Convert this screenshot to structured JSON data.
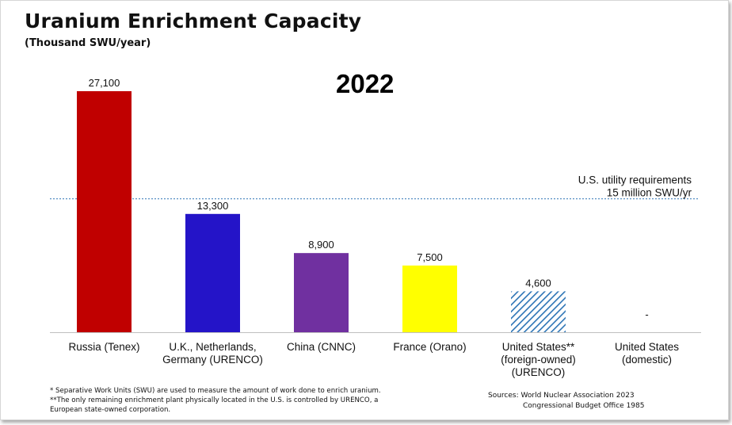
{
  "chart_data": {
    "type": "bar",
    "title": "Uranium Enrichment Capacity",
    "subtitle": "(Thousand SWU/year)",
    "year_label": "2022",
    "categories": [
      [
        "Russia (Tenex)"
      ],
      [
        "U.K., Netherlands,",
        "Germany (URENCO)"
      ],
      [
        "China (CNNC)"
      ],
      [
        "France (Orano)"
      ],
      [
        "United States**",
        "(foreign-owned)",
        "(URENCO)"
      ],
      [
        "United States",
        "(domestic)"
      ]
    ],
    "values": [
      27100,
      13300,
      8900,
      7500,
      4600,
      0
    ],
    "data_labels": [
      "27,100",
      "13,300",
      "8,900",
      "7,500",
      "4,600",
      "-"
    ],
    "colors": [
      "#c00000",
      "#2414c8",
      "#7030a0",
      "#ffff00",
      "#2e75b6",
      "#ffffff"
    ],
    "hatched": [
      false,
      false,
      false,
      false,
      true,
      false
    ],
    "ylim": [
      0,
      27100
    ],
    "reference_line": {
      "value": 15000,
      "label_line1": "U.S. utility requirements",
      "label_line2": "15 million SWU/yr",
      "color": "#2e75b6"
    }
  },
  "footnotes": [
    "* Separative Work Units (SWU) are used to measure the amount of work done to enrich uranium.",
    "**The only remaining enrichment plant physically located in the U.S. is controlled by URENCO, a",
    "European state-owned corporation."
  ],
  "sources": {
    "line1": "Sources:  World Nuclear Association 2023",
    "line2": "Congressional Budget Office 1985"
  }
}
